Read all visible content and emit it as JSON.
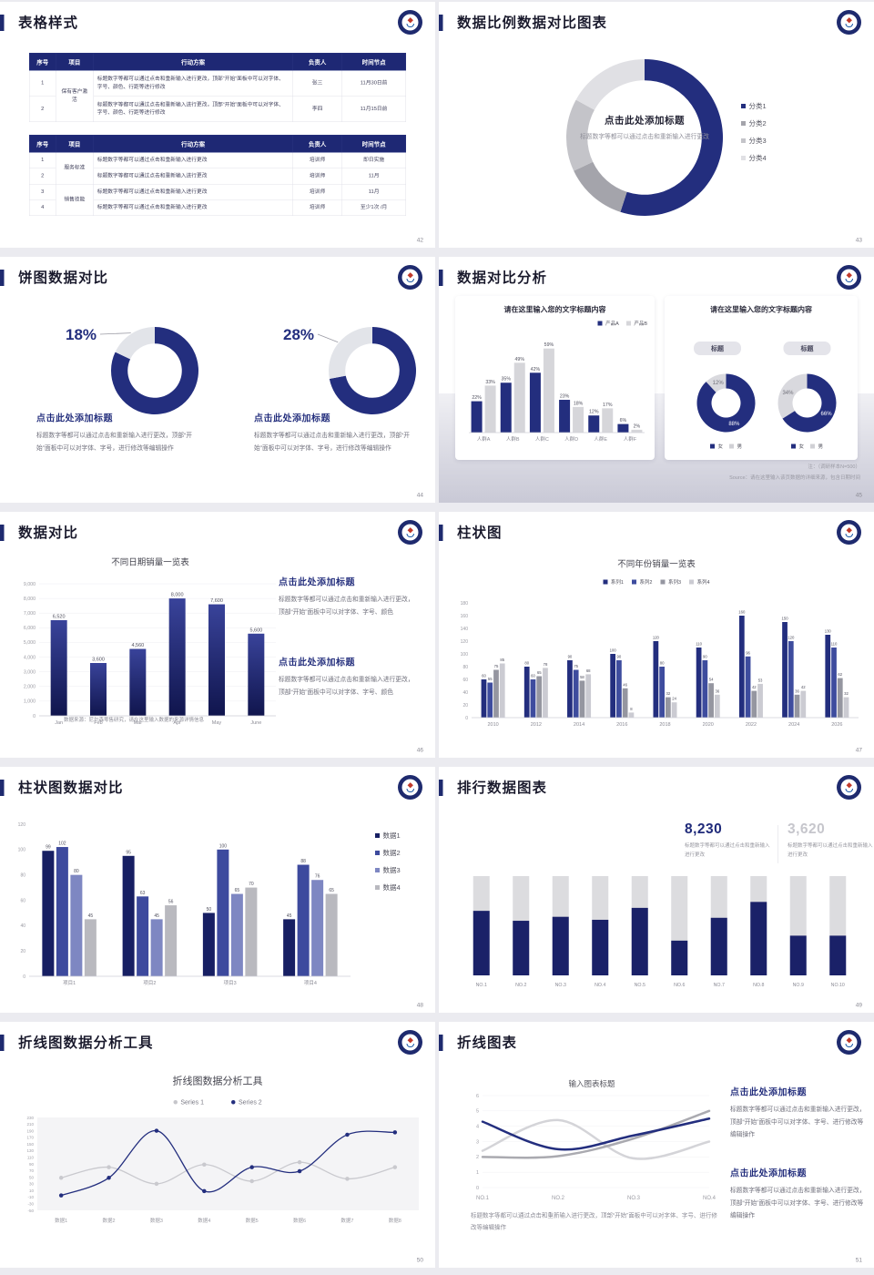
{
  "palette": {
    "navy": "#232e7e",
    "navyDark": "#1a2168",
    "grayLight": "#dcdcdf",
    "headerNavy": "#1e2874"
  },
  "logo": {
    "name": "school-badge"
  },
  "slides": {
    "s42": {
      "title": "表格样式",
      "page": "42",
      "table1": {
        "headers": [
          "序号",
          "项目",
          "行动方案",
          "负责人",
          "时间节点"
        ],
        "group": "保有客户激活",
        "rows": [
          {
            "no": "1",
            "plan": "标题数字等都可以通过点击和重新输入进行更改，顶部“开始”面板中可以对字体、字号、颜色、行距等进行修改",
            "owner": "张三",
            "time": "11月30日前"
          },
          {
            "no": "2",
            "plan": "标题数字等都可以通过点击和重新输入进行更改，顶部“开始”面板中可以对字体、字号、颜色、行距等进行修改",
            "owner": "李四",
            "time": "11月15日前"
          }
        ]
      },
      "table2": {
        "headers": [
          "序号",
          "项目",
          "行动方案",
          "负责人",
          "时间节点"
        ],
        "groups": [
          "服务标准",
          "销售技能"
        ],
        "rows": [
          {
            "no": "1",
            "plan": "标题数字等都可以通过点击和重新输入进行更改",
            "owner": "培训师",
            "time": "即日实施"
          },
          {
            "no": "2",
            "plan": "标题数字等都可以通过点击和重新输入进行更改",
            "owner": "培训师",
            "time": "11月"
          },
          {
            "no": "3",
            "plan": "标题数字等都可以通过点击和重新输入进行更改",
            "owner": "培训师",
            "time": "11月"
          },
          {
            "no": "4",
            "plan": "标题数字等都可以通过点击和重新输入进行更改",
            "owner": "培训师",
            "time": "至少1次 /月"
          }
        ]
      }
    },
    "s43": {
      "title": "数据比例数据对比图表",
      "page": "43",
      "center": {
        "heading": "点击此处添加标题",
        "body": "标题数字等都可以通过点击和重新输入进行更改"
      },
      "legend": [
        {
          "label": "分类1",
          "color": "#232e7e"
        },
        {
          "label": "分类2",
          "color": "#a4a4ab"
        },
        {
          "label": "分类3",
          "color": "#c4c4c9"
        },
        {
          "label": "分类4",
          "color": "#e0e0e4"
        }
      ],
      "chart": {
        "type": "donut",
        "values": [
          55,
          13,
          15,
          17
        ],
        "colors": [
          "#232e7e",
          "#a4a4ab",
          "#c4c4c9",
          "#e0e0e4"
        ]
      }
    },
    "s44": {
      "title": "饼图数据对比",
      "page": "44",
      "items": [
        {
          "heading": "点击此处添加标题",
          "body": "标题数字等都可以通过点击和重新输入进行更改，顶部“开始”面板中可以对字体、字号，进行修改等编辑操作",
          "chart": {
            "type": "donut",
            "values": [
              82,
              18
            ],
            "colors": [
              "#232e7e",
              "#e2e4e9"
            ],
            "callout": "18%"
          }
        },
        {
          "heading": "点击此处添加标题",
          "body": "标题数字等都可以通过点击和重新输入进行更改，顶部“开始”面板中可以对字体、字号，进行修改等编辑操作",
          "chart": {
            "type": "donut",
            "values": [
              72,
              28
            ],
            "colors": [
              "#232e7e",
              "#e2e4e9"
            ],
            "callout": "28%"
          }
        }
      ]
    },
    "s45": {
      "title": "数据对比分析",
      "page": "45",
      "card1": {
        "title": "请在这里输入您的文字标题内容",
        "legend": [
          {
            "label": "产品A",
            "color": "#232e7e"
          },
          {
            "label": "产品B",
            "color": "#d6d6da"
          }
        ],
        "chart": {
          "type": "groupbar",
          "categories": [
            "人群A",
            "人群B",
            "人群C",
            "人群D",
            "人群E",
            "人群F"
          ],
          "series": [
            {
              "name": "产品A",
              "color": "#232e7e",
              "values": [
                22,
                35,
                42,
                23,
                12,
                6
              ]
            },
            {
              "name": "产品B",
              "color": "#d6d6da",
              "values": [
                33,
                49,
                59,
                18,
                17,
                2
              ]
            }
          ],
          "ymax": 62
        }
      },
      "card2": {
        "title": "请在这里输入您的文字标题内容",
        "badge1": "标题",
        "badge2": "标题",
        "donut1": {
          "type": "donut",
          "values": [
            88,
            12
          ],
          "colors": [
            "#232e7e",
            "#d9d9de"
          ],
          "slabels": [
            "88%",
            "12%"
          ],
          "slabelFills": [
            "#ffffff",
            "#70707a"
          ]
        },
        "donut2": {
          "type": "donut",
          "values": [
            66,
            34
          ],
          "colors": [
            "#232e7e",
            "#d9d9de"
          ],
          "slabels": [
            "66%",
            "34%"
          ],
          "slabelFills": [
            "#ffffff",
            "#70707a"
          ]
        },
        "legend": [
          {
            "label": "女",
            "color": "#232e7e"
          },
          {
            "label": "男",
            "color": "#d0d0d5"
          }
        ]
      },
      "note1": "注：（调研样本N=500）",
      "note2": "Source：请在这里输入该页数据的详细来源，包含日期时间"
    },
    "s46": {
      "title": "数据对比",
      "page": "46",
      "chartTitle": "不同日期销量一览表",
      "chart": {
        "type": "groupbar",
        "categories": [
          "Jan",
          "Feb",
          "Mar",
          "Apr",
          "May",
          "June"
        ],
        "series": [
          {
            "values": [
              6520,
              3600,
              4560,
              8000,
              7600,
              5600
            ],
            "labels": [
              "6,520",
              "3,600",
              "4,560",
              "8,000",
              "7,600",
              "5,600"
            ]
          }
        ],
        "ymax": 9000,
        "step": 1000
      },
      "source": "数据来源：尼尔森零售研究，请在这里输入数据的来源详情信息",
      "blocks": [
        {
          "heading": "点击此处添加标题",
          "body": "标题数字等都可以通过点击和重新输入进行更改，顶部“开始”面板中可以对字体、字号、颜色"
        },
        {
          "heading": "点击此处添加标题",
          "body": "标题数字等都可以通过点击和重新输入进行更改，顶部“开始”面板中可以对字体、字号、颜色"
        }
      ]
    },
    "s47": {
      "title": "柱状图",
      "page": "47",
      "chartTitle": "不同年份销量一览表",
      "legend": [
        {
          "label": "系列1",
          "color": "#232e7e"
        },
        {
          "label": "系列2",
          "color": "#3e4c9e"
        },
        {
          "label": "系列3",
          "color": "#9596a0"
        },
        {
          "label": "系列4",
          "color": "#cbcbd2"
        }
      ],
      "chart": {
        "type": "groupbar",
        "categories": [
          "2010",
          "2012",
          "2014",
          "2016",
          "2018",
          "2020",
          "2022",
          "2024",
          "2026"
        ],
        "series": [
          {
            "name": "系列1",
            "color": "#232e7e",
            "values": [
              60,
              80,
              90,
              100,
              120,
              110,
              160,
              150,
              130
            ]
          },
          {
            "name": "系列2",
            "color": "#3e4c9e",
            "values": [
              55,
              60,
              75,
              90,
              80,
              90,
              96,
              120,
              110
            ]
          },
          {
            "name": "系列3",
            "color": "#9596a0",
            "values": [
              75,
              65,
              58,
              46,
              32,
              54,
              42,
              36,
              62
            ]
          },
          {
            "name": "系列4",
            "color": "#cbcbd2",
            "values": [
              85,
              78,
              68,
              8,
              24,
              36,
              53,
              42,
              32
            ]
          }
        ],
        "ymax": 180,
        "step": 20
      }
    },
    "s48": {
      "title": "柱状图数据对比",
      "page": "48",
      "legend": [
        {
          "label": "数据1",
          "color": "#171f63"
        },
        {
          "label": "数据2",
          "color": "#3d4a9e"
        },
        {
          "label": "数据3",
          "color": "#7e87c2"
        },
        {
          "label": "数据4",
          "color": "#b9b9bf"
        }
      ],
      "chart": {
        "type": "groupbar",
        "categories": [
          "项目1",
          "项目2",
          "项目3",
          "项目4"
        ],
        "series": [
          {
            "name": "数据1",
            "color": "#171f63",
            "values": [
              99,
              95,
              50,
              45
            ]
          },
          {
            "name": "数据2",
            "color": "#3d4a9e",
            "values": [
              102,
              63,
              100,
              88
            ]
          },
          {
            "name": "数据3",
            "color": "#7e87c2",
            "values": [
              80,
              45,
              65,
              76
            ]
          },
          {
            "name": "数据4",
            "color": "#b9b9bf",
            "values": [
              45,
              56,
              70,
              65
            ]
          }
        ],
        "ymax": 120,
        "step": 20
      }
    },
    "s49": {
      "title": "排行数据图表",
      "page": "49",
      "stats": [
        {
          "value": "8,230",
          "color": "#1f2a7a",
          "caption": "标题数字等都可以通过点击和重新输入进行更改"
        },
        {
          "value": "3,620",
          "color": "#c6c6cc",
          "caption": "标题数字等都可以通过点击和重新输入进行更改"
        }
      ],
      "chart": {
        "type": "rank",
        "max": 100,
        "categories": [
          "NO.1",
          "NO.2",
          "NO.3",
          "NO.4",
          "NO.5",
          "NO.6",
          "NO.7",
          "NO.8",
          "NO.9",
          "NO.10"
        ],
        "values": [
          65,
          55,
          59,
          56,
          68,
          35,
          58,
          74,
          40,
          40
        ]
      }
    },
    "s50": {
      "title": "折线图数据分析工具",
      "page": "50",
      "chartTitle": "折线图数据分析工具",
      "legend": [
        {
          "label": "Series 1",
          "color": "#c6c6cb"
        },
        {
          "label": "Series 2",
          "color": "#232e7e"
        }
      ],
      "chart": {
        "type": "line",
        "ymin": -50,
        "ymax": 230,
        "step": 20,
        "dots": true,
        "panel": true,
        "mode": "center",
        "categories": [
          "数据1",
          "数据2",
          "数据3",
          "数据4",
          "数据5",
          "数据6",
          "数据7",
          "数据8"
        ],
        "series": [
          {
            "name": "Series 1",
            "color": "#c9c9ce",
            "values": [
              48,
              80,
              30,
              88,
              38,
              95,
              45,
              80
            ]
          },
          {
            "name": "Series 2",
            "color": "#232e7e",
            "values": [
              -5,
              48,
              190,
              8,
              80,
              68,
              178,
              185
            ]
          }
        ]
      }
    },
    "s51": {
      "title": "折线图表",
      "page": "51",
      "chartTitle": "输入图表标题",
      "chart": {
        "type": "line",
        "ymin": 0,
        "ymax": 6,
        "step": 1,
        "mode": "edge",
        "grid": true,
        "categories": [
          "NO.1",
          "NO.2",
          "NO.3",
          "NO.4"
        ],
        "series": [
          {
            "color": "#d4d4d8",
            "values": [
              2.4,
              4.4,
              1.9,
              3.0
            ]
          },
          {
            "color": "#aaaab0",
            "values": [
              2.0,
              2.05,
              3.2,
              5.0
            ]
          },
          {
            "color": "#232e7e",
            "values": [
              4.3,
              2.5,
              3.4,
              4.5
            ]
          }
        ]
      },
      "caption": "标题数字等都可以通过点击和重新输入进行更改，顶部“开始”面板中可以对字体、字号、进行修改等编辑操作",
      "blocks": [
        {
          "heading": "点击此处添加标题",
          "body": "标题数字等都可以通过点击和重新输入进行更改，顶部“开始”面板中可以对字体、字号、进行修改等编辑操作"
        },
        {
          "heading": "点击此处添加标题",
          "body": "标题数字等都可以通过点击和重新输入进行更改，顶部“开始”面板中可以对字体、字号、进行修改等编辑操作"
        }
      ]
    }
  }
}
